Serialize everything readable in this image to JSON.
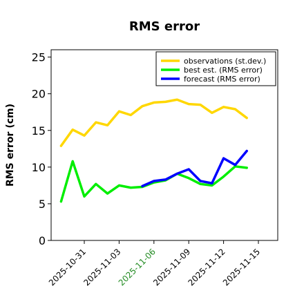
{
  "chart_data": {
    "type": "line",
    "title": "RMS error",
    "xlabel": "",
    "ylabel": "RMS error (cm)",
    "ylim": [
      0,
      26
    ],
    "yticks": [
      0,
      5,
      10,
      15,
      20,
      25
    ],
    "xlim": [
      "2025-10-28",
      "2025-11-16"
    ],
    "xticks": [
      {
        "date": "2025-10-31",
        "label": "2025-10-31",
        "color": "#000000"
      },
      {
        "date": "2025-11-03",
        "label": "2025-11-03",
        "color": "#000000"
      },
      {
        "date": "2025-11-06",
        "label": "2025-11-06",
        "color": "#228B22"
      },
      {
        "date": "2025-11-09",
        "label": "2025-11-09",
        "color": "#000000"
      },
      {
        "date": "2025-11-12",
        "label": "2025-11-12",
        "color": "#000000"
      },
      {
        "date": "2025-11-15",
        "label": "2025-11-15",
        "color": "#000000"
      }
    ],
    "grid": false,
    "legend_position": "top-right",
    "series": [
      {
        "name": "observations (st.dev.)",
        "color": "#FFD700",
        "x": [
          "2025-10-29",
          "2025-10-30",
          "2025-10-31",
          "2025-11-01",
          "2025-11-02",
          "2025-11-03",
          "2025-11-04",
          "2025-11-05",
          "2025-11-06",
          "2025-11-07",
          "2025-11-08",
          "2025-11-09",
          "2025-11-10",
          "2025-11-11",
          "2025-11-12",
          "2025-11-13",
          "2025-11-14",
          "2025-11-15"
        ],
        "y": [
          12.9,
          15.1,
          14.3,
          16.1,
          15.7,
          17.6,
          17.1,
          18.3,
          18.8,
          18.9,
          19.2,
          18.6,
          18.5,
          17.4,
          18.2,
          17.9,
          16.7,
          null
        ]
      },
      {
        "name": "best est. (RMS error)",
        "color": "#00EE00",
        "x": [
          "2025-10-29",
          "2025-10-30",
          "2025-10-31",
          "2025-11-01",
          "2025-11-02",
          "2025-11-03",
          "2025-11-04",
          "2025-11-05",
          "2025-11-06",
          "2025-11-07",
          "2025-11-08",
          "2025-11-09",
          "2025-11-10",
          "2025-11-11",
          "2025-11-12",
          "2025-11-13",
          "2025-11-14",
          "2025-11-15"
        ],
        "y": [
          5.3,
          10.8,
          6.0,
          7.7,
          6.4,
          7.5,
          7.2,
          7.3,
          7.9,
          8.2,
          9.1,
          8.5,
          7.7,
          7.5,
          8.7,
          10.1,
          9.9,
          null
        ]
      },
      {
        "name": "forecast (RMS error)",
        "color": "#0000FF",
        "x": [
          "2025-11-05",
          "2025-11-06",
          "2025-11-07",
          "2025-11-08",
          "2025-11-09",
          "2025-11-10",
          "2025-11-11",
          "2025-11-12",
          "2025-11-13",
          "2025-11-14",
          "2025-11-15"
        ],
        "y": [
          7.4,
          8.1,
          8.3,
          9.1,
          9.7,
          8.1,
          7.8,
          11.2,
          10.3,
          12.2,
          null
        ]
      }
    ]
  }
}
